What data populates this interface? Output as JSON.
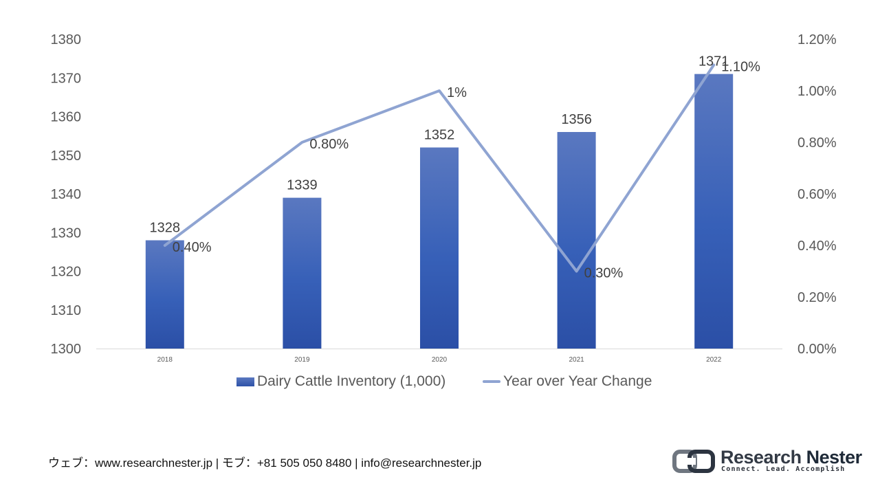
{
  "chart_data": {
    "type": "bar",
    "categories": [
      "2018",
      "2019",
      "2020",
      "2021",
      "2022"
    ],
    "series": [
      {
        "name": "Dairy Cattle Inventory (1,000)",
        "type": "bar",
        "axis": "left",
        "values": [
          1328,
          1339,
          1352,
          1356,
          1371
        ],
        "labels": [
          "1328",
          "1339",
          "1352",
          "1356",
          "1371"
        ],
        "color": "#3a5fb5"
      },
      {
        "name": "Year over Year Change",
        "type": "line",
        "axis": "right",
        "values": [
          0.4,
          0.8,
          1.0,
          0.3,
          1.1
        ],
        "labels": [
          "0.40%",
          "0.80%",
          "1%",
          "0.30%",
          "1.10%"
        ],
        "color": "#8fa4d2"
      }
    ],
    "y_left": {
      "ylim": [
        1300,
        1380
      ],
      "ticks": [
        "1300",
        "1310",
        "1320",
        "1330",
        "1340",
        "1350",
        "1360",
        "1370",
        "1380"
      ]
    },
    "y_right": {
      "ylim": [
        0,
        1.2
      ],
      "ticks": [
        "0.00%",
        "0.20%",
        "0.40%",
        "0.60%",
        "0.80%",
        "1.00%",
        "1.20%"
      ]
    },
    "grid": false,
    "legend_position": "bottom"
  },
  "legend": {
    "bar_label": "Dairy Cattle Inventory (1,000)",
    "line_label": "Year over Year Change"
  },
  "footer": {
    "contact": "ウェブ：www.researchnester.jp | モブ：+81 505 050 8480 | info@researchnester.jp"
  },
  "logo": {
    "name_part1": "Research ",
    "name_part2": "Nester",
    "tagline": "Connect. Lead. Accomplish"
  }
}
